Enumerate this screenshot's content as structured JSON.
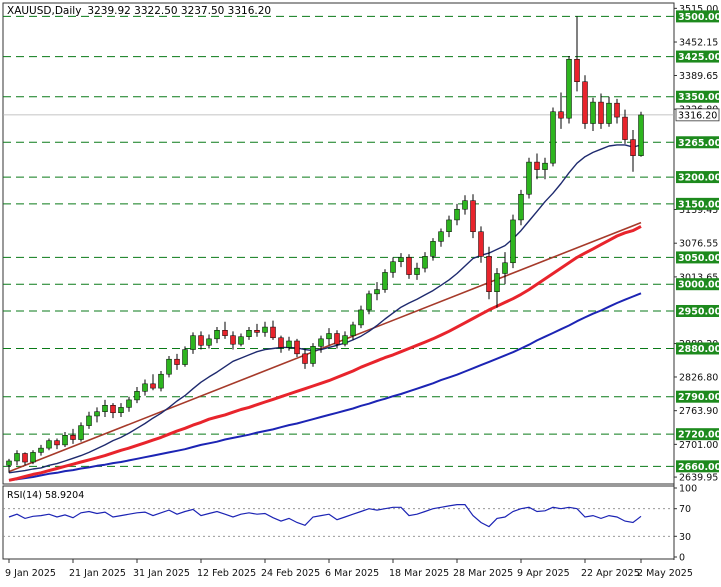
{
  "header": {
    "symbol_label": "XAUUSD,Daily",
    "ohlc": "3239.92 3322.50 3237.50 3316.20"
  },
  "colors": {
    "bull": "#2db51f",
    "bear": "#e8242c",
    "ma_fast": "#1e2a6e",
    "ma_mid": "#e8242c",
    "ma_slow": "#1c24b4",
    "trendline": "#a63a2a",
    "level_line": "#0a7a18",
    "label_bg": "#1d8a1d",
    "rsi": "#1c24b4"
  },
  "chart_data": {
    "type": "candlestick",
    "title": "",
    "xlabel": "",
    "ylabel": "",
    "ylim": [
      2627,
      3525
    ],
    "y_ticks": [
      {
        "value": 3515.0,
        "label": "3515.00"
      },
      {
        "value": 3452.15,
        "label": "3452.15"
      },
      {
        "value": 3389.65,
        "label": "3389.65"
      },
      {
        "value": 3326.8,
        "label": "3326.80"
      },
      {
        "value": 3139.45,
        "label": "3139.45"
      },
      {
        "value": 3076.55,
        "label": "3076.55"
      },
      {
        "value": 3013.65,
        "label": "3013.65"
      },
      {
        "value": 2889.2,
        "label": "2889.20"
      },
      {
        "value": 2826.8,
        "label": "2826.80"
      },
      {
        "value": 2763.9,
        "label": "2763.90"
      },
      {
        "value": 2701.0,
        "label": "2701.00"
      },
      {
        "value": 2639.95,
        "label": "2639.95"
      }
    ],
    "levels": [
      {
        "value": 3500.0,
        "label": "3500.00"
      },
      {
        "value": 3425.0,
        "label": "3425.00"
      },
      {
        "value": 3350.0,
        "label": "3350.00"
      },
      {
        "value": 3265.0,
        "label": "3265.00"
      },
      {
        "value": 3200.0,
        "label": "3200.00"
      },
      {
        "value": 3150.0,
        "label": "3150.00"
      },
      {
        "value": 3050.0,
        "label": "3050.00"
      },
      {
        "value": 3000.0,
        "label": "3000.00"
      },
      {
        "value": 2950.0,
        "label": "2950.00"
      },
      {
        "value": 2880.0,
        "label": "2880.00"
      },
      {
        "value": 2790.0,
        "label": "2790.00"
      },
      {
        "value": 2720.0,
        "label": "2720.00"
      },
      {
        "value": 2660.0,
        "label": "2660.00"
      }
    ],
    "current_price": {
      "value": 3316.2,
      "label": "3316.20"
    },
    "x_labels": [
      {
        "index": 0,
        "label": "9 Jan 2025"
      },
      {
        "index": 8,
        "label": "21 Jan 2025"
      },
      {
        "index": 16,
        "label": "31 Jan 2025"
      },
      {
        "index": 24,
        "label": "12 Feb 2025"
      },
      {
        "index": 32,
        "label": "24 Feb 2025"
      },
      {
        "index": 40,
        "label": "6 Mar 2025"
      },
      {
        "index": 48,
        "label": "18 Mar 2025"
      },
      {
        "index": 56,
        "label": "28 Mar 2025"
      },
      {
        "index": 64,
        "label": "9 Apr 2025"
      },
      {
        "index": 72,
        "label": "22 Apr 2025"
      },
      {
        "index": 79,
        "label": "2 May 2025"
      }
    ],
    "candles": [
      [
        2662,
        2674,
        2648,
        2670
      ],
      [
        2670,
        2690,
        2662,
        2684
      ],
      [
        2684,
        2686,
        2662,
        2668
      ],
      [
        2668,
        2690,
        2664,
        2686
      ],
      [
        2686,
        2700,
        2680,
        2694
      ],
      [
        2694,
        2712,
        2690,
        2708
      ],
      [
        2708,
        2712,
        2692,
        2700
      ],
      [
        2700,
        2724,
        2696,
        2718
      ],
      [
        2718,
        2730,
        2702,
        2710
      ],
      [
        2710,
        2742,
        2706,
        2736
      ],
      [
        2736,
        2762,
        2730,
        2754
      ],
      [
        2754,
        2770,
        2742,
        2762
      ],
      [
        2762,
        2784,
        2752,
        2774
      ],
      [
        2774,
        2778,
        2750,
        2760
      ],
      [
        2760,
        2778,
        2752,
        2770
      ],
      [
        2770,
        2790,
        2762,
        2784
      ],
      [
        2784,
        2808,
        2778,
        2800
      ],
      [
        2800,
        2822,
        2792,
        2814
      ],
      [
        2814,
        2832,
        2802,
        2806
      ],
      [
        2806,
        2838,
        2800,
        2832
      ],
      [
        2832,
        2866,
        2826,
        2860
      ],
      [
        2860,
        2870,
        2840,
        2850
      ],
      [
        2850,
        2884,
        2846,
        2878
      ],
      [
        2878,
        2910,
        2870,
        2904
      ],
      [
        2904,
        2912,
        2878,
        2886
      ],
      [
        2886,
        2906,
        2880,
        2898
      ],
      [
        2898,
        2920,
        2890,
        2914
      ],
      [
        2914,
        2930,
        2898,
        2904
      ],
      [
        2904,
        2912,
        2878,
        2888
      ],
      [
        2888,
        2908,
        2884,
        2902
      ],
      [
        2902,
        2920,
        2896,
        2914
      ],
      [
        2914,
        2926,
        2902,
        2910
      ],
      [
        2910,
        2930,
        2902,
        2920
      ],
      [
        2920,
        2932,
        2896,
        2900
      ],
      [
        2900,
        2904,
        2872,
        2882
      ],
      [
        2882,
        2902,
        2876,
        2894
      ],
      [
        2894,
        2898,
        2864,
        2870
      ],
      [
        2870,
        2880,
        2842,
        2852
      ],
      [
        2852,
        2890,
        2846,
        2884
      ],
      [
        2884,
        2904,
        2872,
        2898
      ],
      [
        2898,
        2918,
        2886,
        2908
      ],
      [
        2908,
        2914,
        2880,
        2888
      ],
      [
        2888,
        2912,
        2884,
        2904
      ],
      [
        2904,
        2930,
        2896,
        2924
      ],
      [
        2924,
        2960,
        2918,
        2952
      ],
      [
        2952,
        2988,
        2944,
        2982
      ],
      [
        2982,
        3004,
        2970,
        2990
      ],
      [
        2990,
        3028,
        2984,
        3022
      ],
      [
        3022,
        3050,
        3012,
        3042
      ],
      [
        3042,
        3058,
        3032,
        3050
      ],
      [
        3050,
        3056,
        3010,
        3018
      ],
      [
        3018,
        3040,
        3008,
        3030
      ],
      [
        3030,
        3060,
        3022,
        3052
      ],
      [
        3052,
        3086,
        3044,
        3080
      ],
      [
        3080,
        3104,
        3070,
        3098
      ],
      [
        3098,
        3128,
        3088,
        3120
      ],
      [
        3120,
        3150,
        3110,
        3140
      ],
      [
        3140,
        3166,
        3130,
        3156
      ],
      [
        3156,
        3168,
        3086,
        3098
      ],
      [
        3098,
        3108,
        3040,
        3052
      ],
      [
        3052,
        3070,
        2972,
        2986
      ],
      [
        2986,
        3030,
        2956,
        3020
      ],
      [
        3020,
        3060,
        3000,
        3040
      ],
      [
        3040,
        3130,
        3030,
        3120
      ],
      [
        3120,
        3176,
        3110,
        3168
      ],
      [
        3168,
        3236,
        3160,
        3228
      ],
      [
        3228,
        3244,
        3196,
        3214
      ],
      [
        3214,
        3236,
        3196,
        3226
      ],
      [
        3226,
        3330,
        3220,
        3322
      ],
      [
        3322,
        3358,
        3290,
        3310
      ],
      [
        3310,
        3426,
        3300,
        3420
      ],
      [
        3420,
        3500,
        3360,
        3378
      ],
      [
        3378,
        3390,
        3290,
        3300
      ],
      [
        3300,
        3348,
        3286,
        3340
      ],
      [
        3340,
        3356,
        3290,
        3300
      ],
      [
        3300,
        3350,
        3294,
        3338
      ],
      [
        3338,
        3346,
        3300,
        3312
      ],
      [
        3312,
        3326,
        3262,
        3270
      ],
      [
        3270,
        3288,
        3210,
        3240
      ],
      [
        3240,
        3322,
        3238,
        3316
      ]
    ],
    "series": [
      {
        "values": [
          2648,
          2650,
          2652,
          2655,
          2657,
          2662,
          2665,
          2670,
          2675,
          2680,
          2686,
          2693,
          2700,
          2708,
          2714,
          2722,
          2731,
          2740,
          2750,
          2759,
          2770,
          2782,
          2792,
          2805,
          2817,
          2827,
          2836,
          2846,
          2856,
          2862,
          2868,
          2874,
          2878,
          2880,
          2882,
          2882,
          2881,
          2878,
          2876,
          2878,
          2882,
          2886,
          2890,
          2896,
          2903,
          2912,
          2923,
          2935,
          2946,
          2957,
          2965,
          2972,
          2980,
          2988,
          2998,
          3008,
          3020,
          3034,
          3048,
          3054,
          3058,
          3065,
          3072,
          3085,
          3100,
          3118,
          3136,
          3154,
          3170,
          3188,
          3208,
          3226,
          3238,
          3246,
          3252,
          3258,
          3260,
          3260,
          3256,
          3260
        ]
      },
      {
        "values": [
          2634,
          2637,
          2641,
          2645,
          2648,
          2652,
          2656,
          2660,
          2664,
          2668,
          2672,
          2676,
          2680,
          2685,
          2690,
          2694,
          2699,
          2704,
          2709,
          2714,
          2720,
          2726,
          2731,
          2737,
          2742,
          2748,
          2752,
          2756,
          2761,
          2766,
          2770,
          2775,
          2780,
          2785,
          2790,
          2795,
          2800,
          2805,
          2810,
          2815,
          2820,
          2826,
          2832,
          2838,
          2845,
          2851,
          2857,
          2863,
          2868,
          2874,
          2880,
          2886,
          2892,
          2898,
          2905,
          2912,
          2920,
          2928,
          2936,
          2944,
          2952,
          2959,
          2966,
          2973,
          2981,
          2990,
          3000,
          3010,
          3020,
          3030,
          3040,
          3050,
          3058,
          3066,
          3074,
          3082,
          3090,
          3096,
          3100,
          3108
        ]
      },
      {
        "values": [
          2634,
          2636,
          2638,
          2640,
          2643,
          2646,
          2648,
          2651,
          2653,
          2656,
          2658,
          2661,
          2663,
          2666,
          2668,
          2671,
          2674,
          2677,
          2680,
          2683,
          2686,
          2689,
          2692,
          2696,
          2700,
          2703,
          2706,
          2710,
          2713,
          2716,
          2719,
          2723,
          2726,
          2729,
          2733,
          2737,
          2740,
          2744,
          2748,
          2752,
          2756,
          2760,
          2764,
          2768,
          2773,
          2777,
          2782,
          2786,
          2791,
          2795,
          2800,
          2805,
          2810,
          2815,
          2821,
          2826,
          2831,
          2837,
          2843,
          2849,
          2855,
          2861,
          2867,
          2873,
          2880,
          2887,
          2895,
          2902,
          2909,
          2916,
          2923,
          2931,
          2938,
          2945,
          2951,
          2958,
          2965,
          2971,
          2977,
          2983
        ]
      }
    ],
    "trendline": {
      "start": [
        0,
        2650
      ],
      "end": [
        79,
        3115
      ]
    },
    "rsi": {
      "label": "RSI(14) 58.9204",
      "ylim": [
        0,
        100
      ],
      "ticks": [
        {
          "value": 100,
          "label": "100"
        },
        {
          "value": 70,
          "label": "70"
        },
        {
          "value": 30,
          "label": "30"
        },
        {
          "value": 0,
          "label": "0"
        }
      ],
      "values": [
        58,
        62,
        56,
        59,
        60,
        62,
        58,
        61,
        57,
        64,
        66,
        63,
        65,
        58,
        60,
        62,
        64,
        65,
        60,
        64,
        68,
        62,
        66,
        69,
        60,
        63,
        66,
        62,
        58,
        62,
        64,
        62,
        63,
        57,
        52,
        56,
        50,
        46,
        58,
        60,
        62,
        54,
        58,
        62,
        66,
        70,
        68,
        70,
        72,
        72,
        60,
        62,
        66,
        70,
        72,
        74,
        76,
        76,
        60,
        50,
        44,
        56,
        58,
        66,
        70,
        72,
        66,
        67,
        72,
        70,
        72,
        70,
        58,
        60,
        56,
        60,
        58,
        52,
        50,
        59
      ]
    }
  }
}
